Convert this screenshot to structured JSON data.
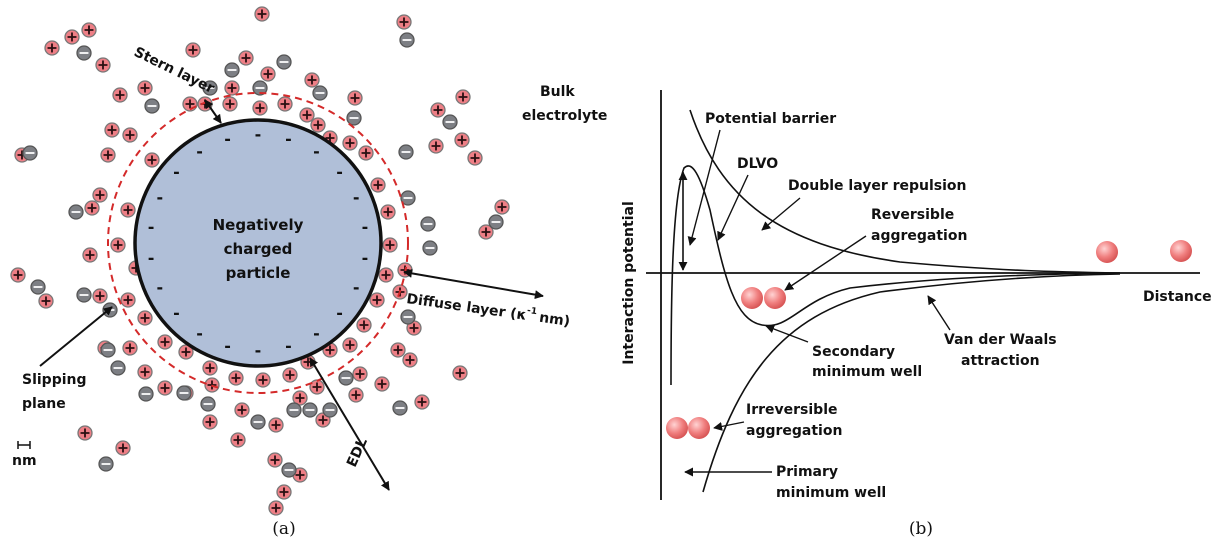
{
  "panel_a": {
    "caption": "(a)",
    "particle_label": [
      "Negatively",
      "charged",
      "particle"
    ],
    "stern_layer": "Stern layer",
    "bulk": [
      "Bulk",
      "electrolyte"
    ],
    "diffuse": "Diffuse layer (κ",
    "diffuse_sup": "-1",
    "diffuse_end": "nm)",
    "slipping": [
      "Slipping",
      "plane"
    ],
    "scale": "nm",
    "edl": "EDL",
    "surface_charge": "-"
  },
  "panel_b": {
    "caption": "(b)",
    "y_axis": "Interaction potential",
    "x_axis": "Distance",
    "potential_barrier": "Potential barrier",
    "dlvo": "DLVO",
    "double_layer": "Double layer repulsion",
    "reversible": [
      "Reversible",
      "aggregation"
    ],
    "secondary": [
      "Secondary",
      "minimum well"
    ],
    "vdw": [
      "Van der Waals",
      "attraction"
    ],
    "irreversible": [
      "Irreversible",
      "aggregation"
    ],
    "primary": [
      "Primary",
      "minimum well"
    ]
  },
  "colors": {
    "particle_fill": "#b0bfd8",
    "slipping_plane": "#d42a2a",
    "cation": "#ee7f86",
    "anion": "#7d7f84",
    "colloid_sphere": "#e56a6a"
  }
}
